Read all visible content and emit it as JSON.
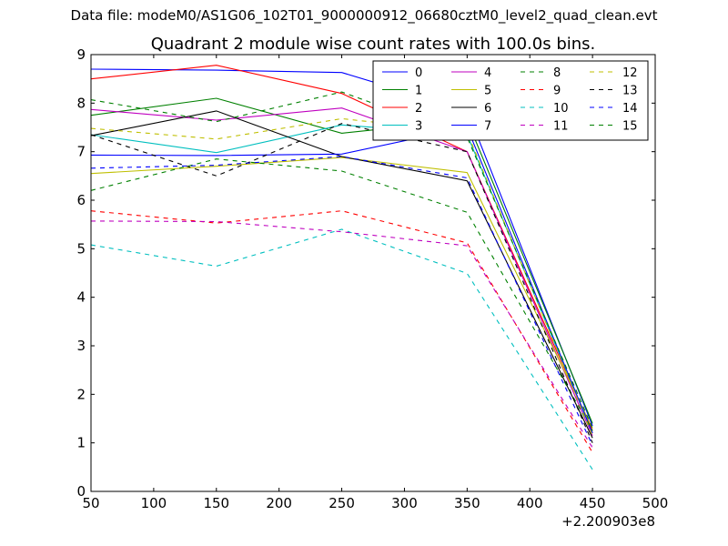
{
  "figure": {
    "suptitle": "Data file: modeM0/AS1G06_102T01_9000000912_06680cztM0_level2_quad_clean.evt"
  },
  "chart_data": {
    "type": "line",
    "title": "Quadrant 2 module wise count rates with 100.0s bins.",
    "xlabel": "",
    "ylabel": "",
    "x_offset_label": "+2.200903e8",
    "xlim": [
      50,
      500
    ],
    "ylim": [
      0,
      9
    ],
    "xticks": [
      50,
      100,
      150,
      200,
      250,
      300,
      350,
      400,
      450,
      500
    ],
    "yticks": [
      0,
      1,
      2,
      3,
      4,
      5,
      6,
      7,
      8,
      9
    ],
    "x": [
      50,
      150,
      250,
      350,
      450
    ],
    "legend_location": "top-right",
    "legend_columns": 4,
    "series": [
      {
        "name": "0",
        "color": "#0000ff",
        "dash": "solid",
        "values": [
          8.7,
          8.68,
          8.63,
          7.85,
          1.35
        ]
      },
      {
        "name": "1",
        "color": "#008000",
        "dash": "solid",
        "values": [
          7.75,
          8.1,
          7.38,
          7.65,
          1.4
        ]
      },
      {
        "name": "2",
        "color": "#ff0000",
        "dash": "solid",
        "values": [
          8.5,
          8.78,
          8.2,
          7.0,
          1.25
        ]
      },
      {
        "name": "3",
        "color": "#00bfbf",
        "dash": "solid",
        "values": [
          7.35,
          6.98,
          7.55,
          7.35,
          1.2
        ]
      },
      {
        "name": "4",
        "color": "#bf00bf",
        "dash": "solid",
        "values": [
          7.87,
          7.65,
          7.9,
          7.0,
          1.15
        ]
      },
      {
        "name": "5",
        "color": "#bfbf00",
        "dash": "solid",
        "values": [
          6.55,
          6.7,
          6.88,
          6.57,
          1.3
        ]
      },
      {
        "name": "6",
        "color": "#000000",
        "dash": "solid",
        "values": [
          7.33,
          7.84,
          6.9,
          6.4,
          1.1
        ]
      },
      {
        "name": "7",
        "color": "#0000ff",
        "dash": "solid",
        "values": [
          6.93,
          6.92,
          6.95,
          7.5,
          1.2
        ]
      },
      {
        "name": "8",
        "color": "#008000",
        "dash": "dashed",
        "values": [
          6.2,
          6.85,
          6.6,
          5.75,
          1.25
        ]
      },
      {
        "name": "9",
        "color": "#ff0000",
        "dash": "dashed",
        "values": [
          5.78,
          5.53,
          5.78,
          5.12,
          0.8
        ]
      },
      {
        "name": "10",
        "color": "#00bfbf",
        "dash": "dashed",
        "values": [
          5.08,
          4.64,
          5.4,
          4.49,
          0.45
        ]
      },
      {
        "name": "11",
        "color": "#bf00bf",
        "dash": "dashed",
        "values": [
          5.57,
          5.56,
          5.35,
          5.06,
          0.9
        ]
      },
      {
        "name": "12",
        "color": "#bfbf00",
        "dash": "dashed",
        "values": [
          7.48,
          7.26,
          7.68,
          7.4,
          1.15
        ]
      },
      {
        "name": "13",
        "color": "#000000",
        "dash": "dashed",
        "values": [
          7.35,
          6.5,
          7.58,
          7.0,
          1.0
        ]
      },
      {
        "name": "14",
        "color": "#0000ff",
        "dash": "dashed",
        "values": [
          6.66,
          6.72,
          6.9,
          6.46,
          0.95
        ]
      },
      {
        "name": "15",
        "color": "#008000",
        "dash": "dashed",
        "values": [
          8.07,
          7.62,
          8.23,
          7.3,
          1.3
        ]
      }
    ]
  }
}
